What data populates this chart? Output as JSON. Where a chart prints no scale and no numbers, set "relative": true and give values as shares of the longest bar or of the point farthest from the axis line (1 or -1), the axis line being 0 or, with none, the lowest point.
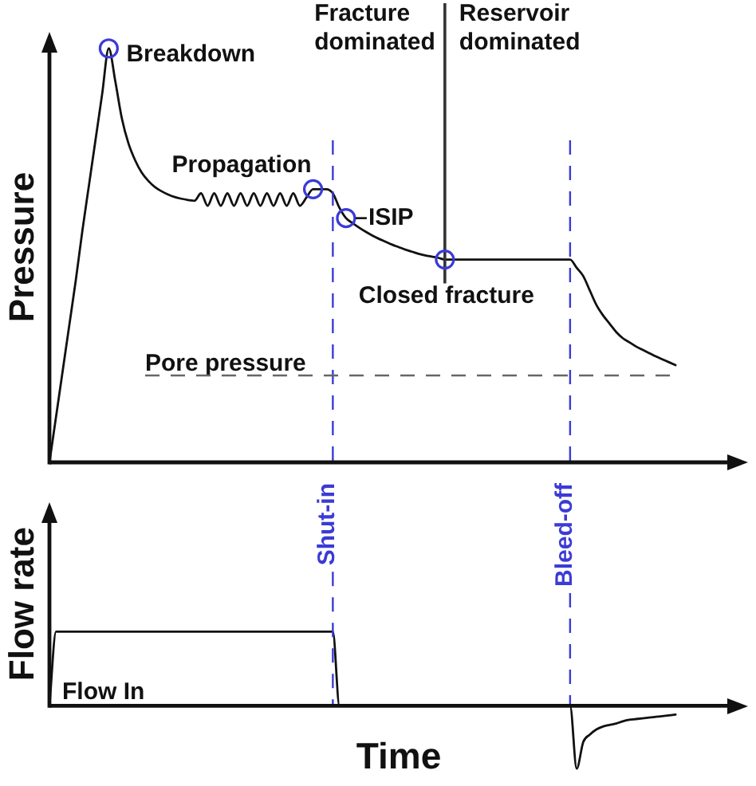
{
  "chart_data": [
    {
      "type": "line",
      "ylabel": "Pressure",
      "relative": true,
      "tick_labels": false,
      "categories": [
        null,
        null,
        null,
        null,
        null,
        null,
        null,
        null,
        null,
        null,
        null,
        null,
        null,
        null,
        null,
        null,
        null,
        null,
        null,
        null,
        null,
        null,
        null,
        null,
        null,
        null,
        null,
        null,
        null,
        null,
        null,
        null,
        null,
        null,
        null,
        null,
        null,
        null,
        null,
        null,
        null,
        null,
        null,
        null,
        null,
        null,
        null,
        null,
        null,
        null,
        null,
        null,
        null,
        null,
        null,
        null,
        null,
        null,
        null,
        null,
        null,
        null,
        null,
        null,
        null,
        null,
        null,
        null,
        null,
        null,
        null,
        null,
        null,
        null,
        null,
        null,
        null,
        null,
        null,
        null,
        null,
        null,
        null,
        null,
        null,
        null,
        null,
        null,
        null,
        null,
        null,
        null,
        null,
        null,
        null,
        null,
        null,
        null,
        null,
        null,
        null,
        null,
        null,
        null,
        null,
        null,
        null
      ],
      "series": [
        {
          "color": "#111111",
          "values": [
            0,
            0.11,
            0.22,
            0.33,
            0.44,
            0.56,
            0.67,
            0.78,
            0.89,
            1,
            0.92,
            0.83,
            0.77,
            0.73,
            0.7,
            0.68,
            0.665,
            0.655,
            0.647,
            0.641,
            0.637,
            0.634,
            0.632,
            0.65,
            0.62,
            0.65,
            0.62,
            0.65,
            0.62,
            0.65,
            0.62,
            0.65,
            0.62,
            0.65,
            0.62,
            0.65,
            0.62,
            0.65,
            0.62,
            0.64,
            0.66,
            0.66,
            0.66,
            0.65,
            0.615,
            0.59,
            0.578,
            0.567,
            0.557,
            0.548,
            0.54,
            0.533,
            0.526,
            0.52,
            0.514,
            0.509,
            0.504,
            0.5,
            0.497,
            0.494,
            0.49,
            0.49,
            0.49,
            0.49,
            0.49,
            0.49,
            0.49,
            0.49,
            0.49,
            0.49,
            0.49,
            0.49,
            0.49,
            0.49,
            0.49,
            0.49,
            0.49,
            0.49,
            0.49,
            0.49,
            0.47,
            0.45,
            0.415,
            0.38,
            0.355,
            0.335,
            0.315,
            0.3,
            0.29,
            0.28,
            0.272,
            0.264,
            0.256,
            0.249,
            0.242,
            0.235,
            null,
            null,
            null,
            null,
            null,
            null,
            null,
            null,
            null,
            null,
            null
          ]
        }
      ],
      "annotations": [
        "Fracture dominated",
        "Reservoir dominated",
        "Breakdown",
        "Propagation",
        "ISIP",
        "Closed fracture"
      ],
      "ref_lines": [
        {
          "axis": "y",
          "value": 0.21,
          "label": "Pore pressure",
          "color": "#666666",
          "line_style": "dashed"
        }
      ]
    },
    {
      "type": "line",
      "xlabel": "Time",
      "ylabel": "Flow rate",
      "relative": true,
      "tick_labels": false,
      "categories": [
        null,
        null,
        null,
        null,
        null,
        null,
        null,
        null,
        null,
        null,
        null,
        null,
        null,
        null,
        null,
        null,
        null,
        null,
        null,
        null,
        null,
        null,
        null,
        null,
        null,
        null,
        null,
        null,
        null,
        null,
        null,
        null,
        null,
        null,
        null,
        null,
        null,
        null,
        null,
        null,
        null,
        null,
        null,
        null,
        null,
        null,
        null,
        null,
        null,
        null,
        null,
        null,
        null,
        null,
        null,
        null,
        null,
        null,
        null,
        null,
        null,
        null,
        null,
        null,
        null,
        null,
        null,
        null,
        null,
        null,
        null,
        null,
        null,
        null,
        null,
        null,
        null,
        null,
        null,
        null,
        null,
        null,
        null,
        null,
        null,
        null,
        null,
        null,
        null,
        null,
        null,
        null,
        null,
        null,
        null,
        null,
        null,
        null,
        null,
        null,
        null,
        null,
        null,
        null,
        null,
        null,
        null
      ],
      "series": [
        {
          "name": "Flow In",
          "color": "#111111",
          "values": [
            0,
            1,
            1,
            1,
            1,
            1,
            1,
            1,
            1,
            1,
            1,
            1,
            1,
            1,
            1,
            1,
            1,
            1,
            1,
            1,
            1,
            1,
            1,
            1,
            1,
            1,
            1,
            1,
            1,
            1,
            1,
            1,
            1,
            1,
            1,
            1,
            1,
            1,
            1,
            1,
            1,
            1,
            1,
            1,
            0,
            0,
            0,
            0,
            0,
            0,
            0,
            0,
            0,
            0,
            0,
            0,
            0,
            0,
            0,
            0,
            0,
            0,
            0,
            0,
            0,
            0,
            0,
            0,
            0,
            0,
            0,
            0,
            0,
            0,
            0,
            0,
            0,
            0,
            0,
            0,
            -0.85,
            -0.49,
            -0.39,
            -0.32,
            -0.28,
            -0.26,
            -0.24,
            -0.21,
            -0.19,
            -0.18,
            -0.17,
            -0.16,
            -0.15,
            -0.14,
            -0.13,
            -0.12,
            null,
            null,
            null,
            null,
            null,
            null,
            null,
            null,
            null,
            null,
            null
          ]
        }
      ],
      "annotations": [
        "Shut-in",
        "Bleed-off"
      ]
    }
  ]
}
